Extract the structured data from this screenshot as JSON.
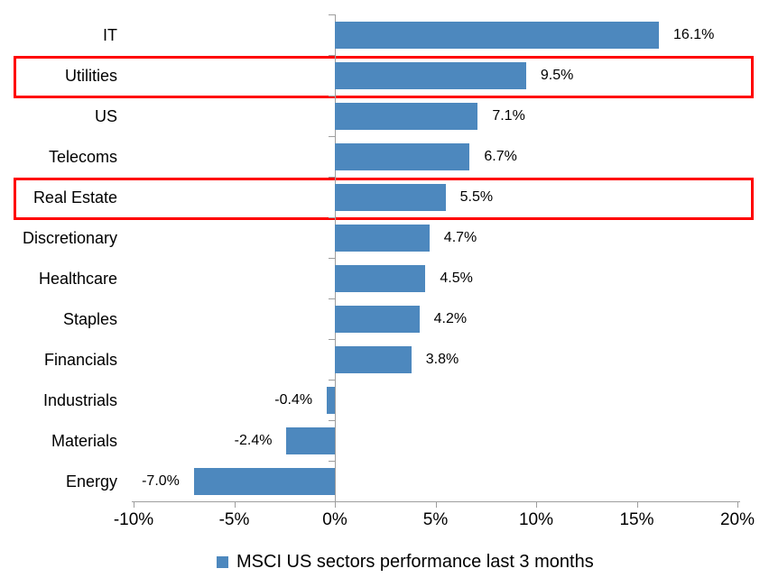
{
  "chart_data": {
    "type": "bar",
    "orientation": "horizontal",
    "categories": [
      "IT",
      "Utilities",
      "US",
      "Telecoms",
      "Real Estate",
      "Discretionary",
      "Healthcare",
      "Staples",
      "Financials",
      "Industrials",
      "Materials",
      "Energy"
    ],
    "values": [
      16.1,
      9.5,
      7.1,
      6.7,
      5.5,
      4.7,
      4.5,
      4.2,
      3.8,
      -0.4,
      -2.4,
      -7.0
    ],
    "value_labels": [
      "16.1%",
      "9.5%",
      "7.1%",
      "6.7%",
      "5.5%",
      "4.7%",
      "4.5%",
      "4.2%",
      "3.8%",
      "-0.4%",
      "-2.4%",
      "-7.0%"
    ],
    "xlim": [
      -10,
      20
    ],
    "x_ticks": [
      -10,
      -5,
      0,
      5,
      10,
      15,
      20
    ],
    "x_tick_labels": [
      "-10%",
      "-5%",
      "0%",
      "5%",
      "10%",
      "15%",
      "20%"
    ],
    "grid": false,
    "legend_position": "bottom",
    "legend": [
      "MSCI US sectors performance last 3 months"
    ],
    "highlighted_categories": [
      "Utilities",
      "Real Estate"
    ],
    "colors": {
      "bar": "#4d88be",
      "highlight_box": "#ff0000",
      "axis": "#9e9e9e",
      "text": "#000000",
      "background": "#ffffff"
    }
  }
}
